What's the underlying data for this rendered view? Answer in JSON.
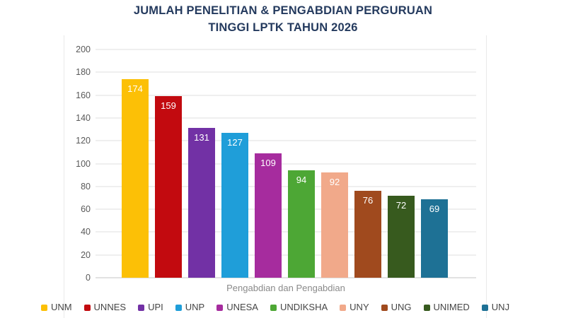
{
  "title_lines": [
    "JUMLAH PENELITIAN & PENGABDIAN PERGURUAN",
    "TINGGI LPTK TAHUN 2026"
  ],
  "chart_data": {
    "type": "bar",
    "title": "JUMLAH PENELITIAN & PENGABDIAN PERGURUAN TINGGI LPTK TAHUN 2026",
    "categories": [
      "UNM",
      "UNNES",
      "UPI",
      "UNP",
      "UNESA",
      "UNDIKSHA",
      "UNY",
      "UNG",
      "UNIMED",
      "UNJ"
    ],
    "values": [
      174,
      159,
      131,
      127,
      109,
      94,
      92,
      76,
      72,
      69
    ],
    "colors": [
      "#FCC006",
      "#C20A0F",
      "#7231A5",
      "#1F9ED9",
      "#A62C9E",
      "#4DA735",
      "#F1A98A",
      "#A04A1E",
      "#375A1E",
      "#1E7195"
    ],
    "bar_label_color": "#FFFFFF",
    "xlabel": "Pengabdian dan Pengabdian",
    "ylabel": "",
    "ylim": [
      0,
      200
    ],
    "yticks": [
      0,
      20,
      40,
      60,
      80,
      100,
      120,
      140,
      160,
      180,
      200
    ],
    "grid": true,
    "legend_position": "bottom"
  },
  "theme": {
    "background": "#FFFFFF",
    "title_color": "#243A5E",
    "tick_label_color": "#595959",
    "axis_label_color": "#8A8A8A",
    "legend_text_color": "#454545",
    "gridline_color": "#EFEFEF",
    "baseline_color": "#E2E2E2",
    "frame_border_color": "#E9E9E9"
  }
}
